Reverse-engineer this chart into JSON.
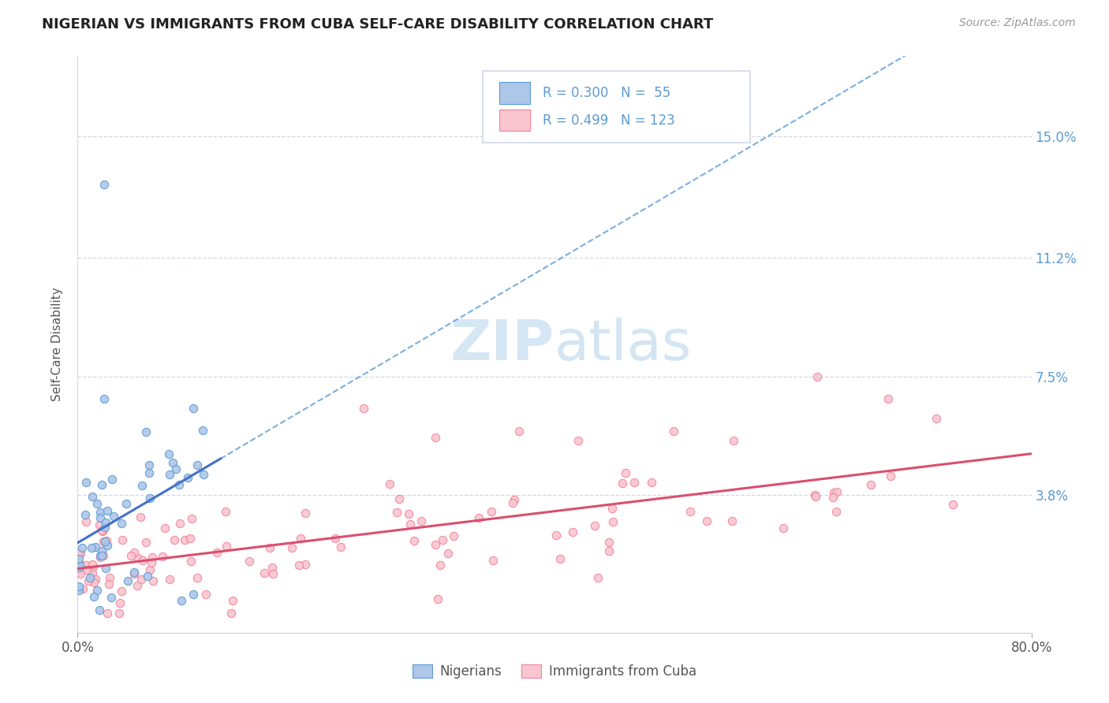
{
  "title": "NIGERIAN VS IMMIGRANTS FROM CUBA SELF-CARE DISABILITY CORRELATION CHART",
  "source": "Source: ZipAtlas.com",
  "ylabel": "Self-Care Disability",
  "xlim": [
    0.0,
    0.8
  ],
  "ylim": [
    -0.005,
    0.175
  ],
  "ytick_values": [
    0.038,
    0.075,
    0.112,
    0.15
  ],
  "ytick_labels": [
    "3.8%",
    "7.5%",
    "11.2%",
    "15.0%"
  ],
  "blue_fill": "#aec6e8",
  "blue_edge": "#5b9bd5",
  "pink_fill": "#f9c6d0",
  "pink_edge": "#f4829a",
  "blue_line_color": "#4472c4",
  "pink_line_color": "#d94f6e",
  "grid_color": "#d0d8e8",
  "text_color": "#555555",
  "label_color": "#5b9bd5",
  "watermark_color": "#c5ddf0",
  "legend_border": "#d0d8e8"
}
